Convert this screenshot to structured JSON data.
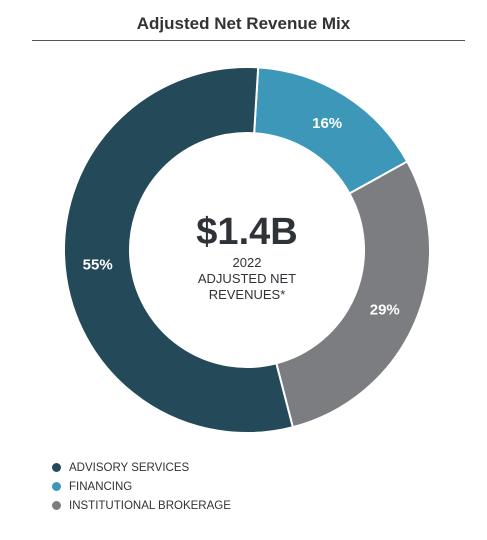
{
  "chart_data": {
    "type": "pie",
    "title": "Adjusted Net Revenue Mix",
    "center": {
      "value": "$1.4B",
      "line1": "2022",
      "line2": "ADJUSTED NET",
      "line3": "REVENUES*"
    },
    "slices": [
      {
        "name": "ADVISORY SERVICES",
        "value": 55,
        "label": "55%",
        "color": "#244a5a"
      },
      {
        "name": "FINANCING",
        "value": 16,
        "label": "16%",
        "color": "#3d97b8"
      },
      {
        "name": "INSTITUTIONAL BROKERAGE",
        "value": 29,
        "label": "29%",
        "color": "#7c7d80"
      }
    ],
    "legend_position": "bottom-left"
  }
}
